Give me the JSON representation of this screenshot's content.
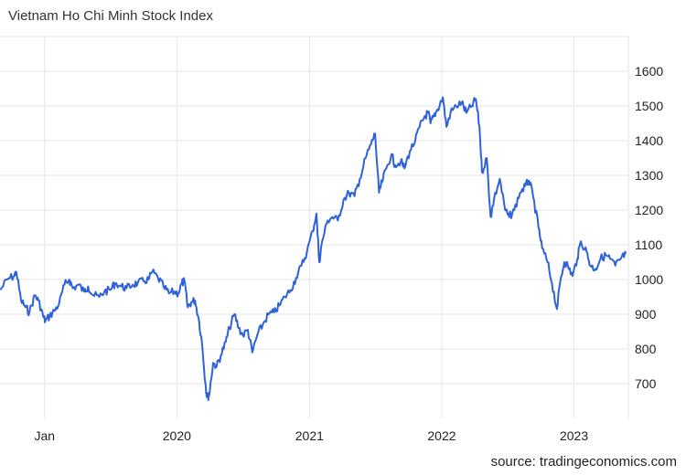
{
  "chart_data": {
    "type": "line",
    "title": "Vietnam Ho Chi Minh Stock Index",
    "xlabel": "",
    "ylabel": "",
    "source": "source: tradingeconomics.com",
    "color": "#2f62d9",
    "grid": true,
    "y_axis_side": "right",
    "ylim": [
      600,
      1700
    ],
    "xlim": [
      "2018-08-31",
      "2023-05-31"
    ],
    "y_ticks": [
      700,
      800,
      900,
      1000,
      1100,
      1200,
      1300,
      1400,
      1500,
      1600
    ],
    "x_ticks": [
      {
        "date": "2019-01-01",
        "label": "Jan"
      },
      {
        "date": "2020-01-01",
        "label": "2020"
      },
      {
        "date": "2021-01-01",
        "label": "2021"
      },
      {
        "date": "2022-01-01",
        "label": "2022"
      },
      {
        "date": "2023-01-01",
        "label": "2023"
      }
    ],
    "series": [
      {
        "points": [
          [
            "2018-09-01",
            970
          ],
          [
            "2018-09-20",
            1000
          ],
          [
            "2018-10-08",
            1010
          ],
          [
            "2018-10-15",
            1022
          ],
          [
            "2018-10-28",
            940
          ],
          [
            "2018-11-10",
            920
          ],
          [
            "2018-11-20",
            905
          ],
          [
            "2018-12-05",
            955
          ],
          [
            "2018-12-15",
            940
          ],
          [
            "2018-12-28",
            895
          ],
          [
            "2019-01-03",
            880
          ],
          [
            "2019-01-15",
            895
          ],
          [
            "2019-01-28",
            910
          ],
          [
            "2019-02-10",
            930
          ],
          [
            "2019-02-25",
            985
          ],
          [
            "2019-03-10",
            1000
          ],
          [
            "2019-03-20",
            975
          ],
          [
            "2019-04-05",
            985
          ],
          [
            "2019-04-20",
            965
          ],
          [
            "2019-05-01",
            980
          ],
          [
            "2019-05-15",
            955
          ],
          [
            "2019-06-01",
            950
          ],
          [
            "2019-06-15",
            965
          ],
          [
            "2019-07-01",
            970
          ],
          [
            "2019-07-15",
            990
          ],
          [
            "2019-08-01",
            980
          ],
          [
            "2019-08-15",
            975
          ],
          [
            "2019-09-01",
            985
          ],
          [
            "2019-09-15",
            990
          ],
          [
            "2019-10-01",
            995
          ],
          [
            "2019-10-15",
            1000
          ],
          [
            "2019-10-25",
            1022
          ],
          [
            "2019-11-10",
            1005
          ],
          [
            "2019-11-25",
            980
          ],
          [
            "2019-12-10",
            960
          ],
          [
            "2019-12-25",
            965
          ],
          [
            "2020-01-05",
            960
          ],
          [
            "2020-01-15",
            990
          ],
          [
            "2020-01-22",
            995
          ],
          [
            "2020-01-31",
            920
          ],
          [
            "2020-02-10",
            935
          ],
          [
            "2020-02-20",
            940
          ],
          [
            "2020-03-01",
            890
          ],
          [
            "2020-03-10",
            820
          ],
          [
            "2020-03-20",
            700
          ],
          [
            "2020-03-24",
            662
          ],
          [
            "2020-03-30",
            665
          ],
          [
            "2020-04-10",
            760
          ],
          [
            "2020-04-20",
            750
          ],
          [
            "2020-05-01",
            780
          ],
          [
            "2020-05-15",
            820
          ],
          [
            "2020-05-25",
            860
          ],
          [
            "2020-06-08",
            900
          ],
          [
            "2020-06-20",
            860
          ],
          [
            "2020-07-01",
            840
          ],
          [
            "2020-07-15",
            855
          ],
          [
            "2020-07-27",
            790
          ],
          [
            "2020-08-10",
            840
          ],
          [
            "2020-08-25",
            870
          ],
          [
            "2020-09-10",
            900
          ],
          [
            "2020-09-25",
            905
          ],
          [
            "2020-10-10",
            925
          ],
          [
            "2020-10-25",
            950
          ],
          [
            "2020-11-10",
            970
          ],
          [
            "2020-11-25",
            1005
          ],
          [
            "2020-12-10",
            1040
          ],
          [
            "2020-12-25",
            1080
          ],
          [
            "2021-01-10",
            1140
          ],
          [
            "2021-01-20",
            1190
          ],
          [
            "2021-01-28",
            1050
          ],
          [
            "2021-02-05",
            1110
          ],
          [
            "2021-02-20",
            1170
          ],
          [
            "2021-03-05",
            1180
          ],
          [
            "2021-03-20",
            1170
          ],
          [
            "2021-04-05",
            1230
          ],
          [
            "2021-04-20",
            1250
          ],
          [
            "2021-05-05",
            1240
          ],
          [
            "2021-05-20",
            1290
          ],
          [
            "2021-06-05",
            1350
          ],
          [
            "2021-06-20",
            1390
          ],
          [
            "2021-07-01",
            1420
          ],
          [
            "2021-07-12",
            1250
          ],
          [
            "2021-07-20",
            1280
          ],
          [
            "2021-08-01",
            1320
          ],
          [
            "2021-08-15",
            1360
          ],
          [
            "2021-08-25",
            1330
          ],
          [
            "2021-09-10",
            1340
          ],
          [
            "2021-09-20",
            1320
          ],
          [
            "2021-10-05",
            1370
          ],
          [
            "2021-10-20",
            1400
          ],
          [
            "2021-11-01",
            1440
          ],
          [
            "2021-11-15",
            1470
          ],
          [
            "2021-11-25",
            1480
          ],
          [
            "2021-12-01",
            1450
          ],
          [
            "2021-12-10",
            1470
          ],
          [
            "2021-12-20",
            1490
          ],
          [
            "2022-01-04",
            1525
          ],
          [
            "2022-01-14",
            1440
          ],
          [
            "2022-01-25",
            1480
          ],
          [
            "2022-02-10",
            1500
          ],
          [
            "2022-02-25",
            1510
          ],
          [
            "2022-03-10",
            1480
          ],
          [
            "2022-03-25",
            1500
          ],
          [
            "2022-04-05",
            1520
          ],
          [
            "2022-04-15",
            1440
          ],
          [
            "2022-04-22",
            1310
          ],
          [
            "2022-05-05",
            1350
          ],
          [
            "2022-05-16",
            1180
          ],
          [
            "2022-05-25",
            1230
          ],
          [
            "2022-06-10",
            1290
          ],
          [
            "2022-06-25",
            1200
          ],
          [
            "2022-07-06",
            1180
          ],
          [
            "2022-07-20",
            1200
          ],
          [
            "2022-08-05",
            1250
          ],
          [
            "2022-08-20",
            1270
          ],
          [
            "2022-08-30",
            1285
          ],
          [
            "2022-09-10",
            1240
          ],
          [
            "2022-09-25",
            1150
          ],
          [
            "2022-10-05",
            1090
          ],
          [
            "2022-10-20",
            1050
          ],
          [
            "2022-11-01",
            990
          ],
          [
            "2022-11-15",
            915
          ],
          [
            "2022-11-25",
            1000
          ],
          [
            "2022-12-05",
            1050
          ],
          [
            "2022-12-15",
            1040
          ],
          [
            "2022-12-28",
            1010
          ],
          [
            "2023-01-10",
            1060
          ],
          [
            "2023-01-20",
            1110
          ],
          [
            "2023-02-05",
            1080
          ],
          [
            "2023-02-15",
            1040
          ],
          [
            "2023-03-01",
            1030
          ],
          [
            "2023-03-15",
            1060
          ],
          [
            "2023-03-30",
            1070
          ],
          [
            "2023-04-10",
            1060
          ],
          [
            "2023-04-25",
            1040
          ],
          [
            "2023-05-10",
            1060
          ],
          [
            "2023-05-25",
            1075
          ]
        ]
      }
    ]
  }
}
